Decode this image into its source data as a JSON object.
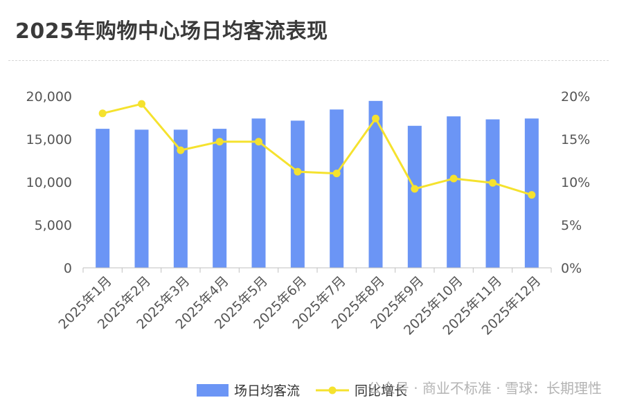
{
  "chart_data": {
    "type": "bar",
    "title": "2025年购物中心场日均客流表现",
    "categories": [
      "2025年1月",
      "2025年2月",
      "2025年3月",
      "2025年4月",
      "2025年5月",
      "2025年6月",
      "2025年7月",
      "2025年8月",
      "2025年9月",
      "2025年10月",
      "2025年11月",
      "2025年12月"
    ],
    "series": [
      {
        "name": "场日均客流",
        "type": "bar",
        "axis": "left",
        "color": "#6b95f5",
        "values": [
          16200,
          16100,
          16100,
          16200,
          17400,
          17150,
          18450,
          19450,
          16550,
          17650,
          17300,
          17400
        ]
      },
      {
        "name": "同比增长",
        "type": "line",
        "axis": "right",
        "color": "#f5e22e",
        "values": [
          18.0,
          19.1,
          13.7,
          14.7,
          14.7,
          11.2,
          11.0,
          17.4,
          9.2,
          10.4,
          9.9,
          8.5
        ]
      }
    ],
    "y_left": {
      "min": 0,
      "max": 20000,
      "ticks": [
        "0",
        "5,000",
        "10,000",
        "15,000",
        "20,000"
      ]
    },
    "y_right": {
      "min": 0,
      "max": 20,
      "ticks": [
        "0%",
        "5%",
        "10%",
        "15%",
        "20%"
      ]
    },
    "grid": false,
    "legend_position": "bottom-right"
  },
  "watermark": "公众号 · 商业不标准 · 雪球：长期理性"
}
